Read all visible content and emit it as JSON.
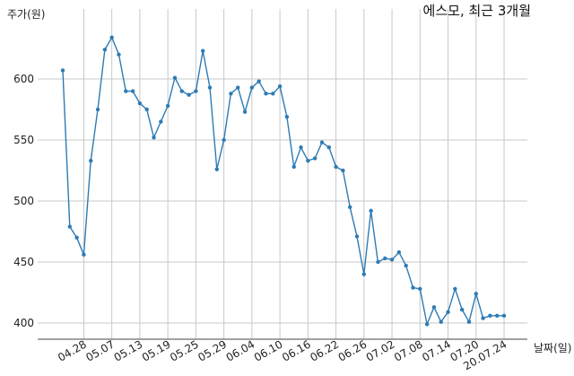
{
  "chart_data": {
    "type": "line",
    "title": "에스모, 최근 3개월",
    "ylabel": "주가(원)",
    "xlabel": "날짜(일)",
    "ylim": [
      385,
      640
    ],
    "yticks": [
      400,
      450,
      500,
      550,
      600
    ],
    "grid": true,
    "line_color": "#2e7bb4",
    "x_tick_labels": [
      "04.28",
      "05.07",
      "05.13",
      "05.19",
      "05.25",
      "05.29",
      "06.04",
      "06.10",
      "06.16",
      "06.22",
      "06.26",
      "07.02",
      "07.08",
      "07.14",
      "07.20",
      "20.07.24"
    ],
    "x_tick_index": [
      3,
      7,
      11,
      15,
      19,
      23,
      27,
      31,
      35,
      39,
      43,
      47,
      51,
      55,
      59,
      63
    ],
    "series": [
      {
        "values": [
          607,
          479,
          470,
          456,
          533,
          575,
          624,
          634,
          620,
          590,
          590,
          580,
          575,
          552,
          565,
          578,
          601,
          590,
          587,
          590,
          623,
          593,
          526,
          550,
          588,
          593,
          573,
          593,
          598,
          588,
          588,
          594,
          569,
          528,
          544,
          533,
          535,
          548,
          544,
          528,
          525,
          495,
          471,
          440,
          492,
          450,
          453,
          452,
          458,
          447,
          429,
          428,
          399,
          413,
          401,
          409,
          428,
          411,
          401,
          424,
          404,
          406,
          406,
          406
        ]
      }
    ]
  }
}
